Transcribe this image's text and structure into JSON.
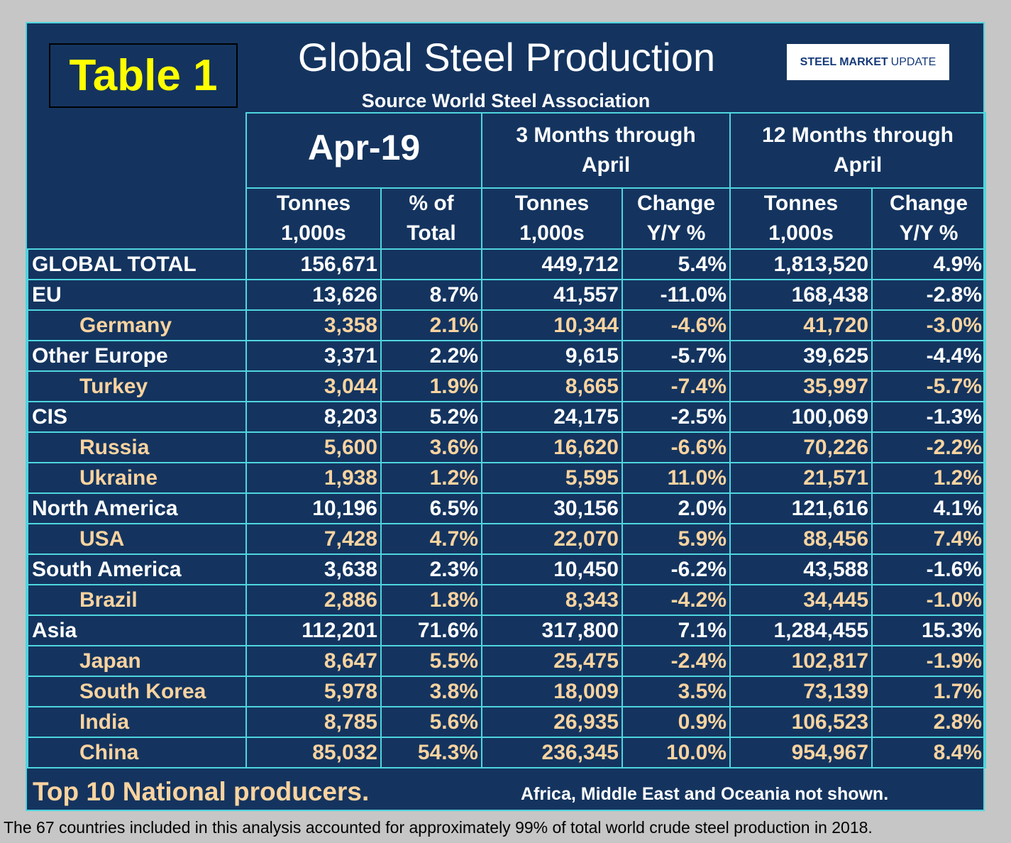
{
  "badge": "Table 1",
  "title": "Global Steel Production",
  "subtitle": "Source World Steel Association",
  "logo": {
    "part1": "STEEL",
    "part2": "MARKET",
    "part3": "UPDATE"
  },
  "headers": {
    "period1": "Apr-19",
    "period2_line1": "3 Months through",
    "period2_line2": "April",
    "period3_line1": "12 Months through",
    "period3_line2": "April",
    "col_tonnes_line1": "Tonnes",
    "col_tonnes_line2": "1,000s",
    "col_pct_line1": "% of",
    "col_pct_line2": "Total",
    "col_change_line1": "Change",
    "col_change_line2": "Y/Y %"
  },
  "rows": [
    {
      "name": "GLOBAL TOTAL",
      "sub": false,
      "apr_tonnes": "156,671",
      "apr_pct": "",
      "m3_tonnes": "449,712",
      "m3_change": "5.4%",
      "m12_tonnes": "1,813,520",
      "m12_change": "4.9%"
    },
    {
      "name": "EU",
      "sub": false,
      "apr_tonnes": "13,626",
      "apr_pct": "8.7%",
      "m3_tonnes": "41,557",
      "m3_change": "-11.0%",
      "m12_tonnes": "168,438",
      "m12_change": "-2.8%"
    },
    {
      "name": "Germany",
      "sub": true,
      "apr_tonnes": "3,358",
      "apr_pct": "2.1%",
      "m3_tonnes": "10,344",
      "m3_change": "-4.6%",
      "m12_tonnes": "41,720",
      "m12_change": "-3.0%"
    },
    {
      "name": "Other Europe",
      "sub": false,
      "apr_tonnes": "3,371",
      "apr_pct": "2.2%",
      "m3_tonnes": "9,615",
      "m3_change": "-5.7%",
      "m12_tonnes": "39,625",
      "m12_change": "-4.4%"
    },
    {
      "name": "Turkey",
      "sub": true,
      "apr_tonnes": "3,044",
      "apr_pct": "1.9%",
      "m3_tonnes": "8,665",
      "m3_change": "-7.4%",
      "m12_tonnes": "35,997",
      "m12_change": "-5.7%"
    },
    {
      "name": "CIS",
      "sub": false,
      "apr_tonnes": "8,203",
      "apr_pct": "5.2%",
      "m3_tonnes": "24,175",
      "m3_change": "-2.5%",
      "m12_tonnes": "100,069",
      "m12_change": "-1.3%"
    },
    {
      "name": "Russia",
      "sub": true,
      "apr_tonnes": "5,600",
      "apr_pct": "3.6%",
      "m3_tonnes": "16,620",
      "m3_change": "-6.6%",
      "m12_tonnes": "70,226",
      "m12_change": "-2.2%"
    },
    {
      "name": "Ukraine",
      "sub": true,
      "apr_tonnes": "1,938",
      "apr_pct": "1.2%",
      "m3_tonnes": "5,595",
      "m3_change": "11.0%",
      "m12_tonnes": "21,571",
      "m12_change": "1.2%"
    },
    {
      "name": "North America",
      "sub": false,
      "apr_tonnes": "10,196",
      "apr_pct": "6.5%",
      "m3_tonnes": "30,156",
      "m3_change": "2.0%",
      "m12_tonnes": "121,616",
      "m12_change": "4.1%"
    },
    {
      "name": "USA",
      "sub": true,
      "apr_tonnes": "7,428",
      "apr_pct": "4.7%",
      "m3_tonnes": "22,070",
      "m3_change": "5.9%",
      "m12_tonnes": "88,456",
      "m12_change": "7.4%"
    },
    {
      "name": "South America",
      "sub": false,
      "apr_tonnes": "3,638",
      "apr_pct": "2.3%",
      "m3_tonnes": "10,450",
      "m3_change": "-6.2%",
      "m12_tonnes": "43,588",
      "m12_change": "-1.6%"
    },
    {
      "name": "Brazil",
      "sub": true,
      "apr_tonnes": "2,886",
      "apr_pct": "1.8%",
      "m3_tonnes": "8,343",
      "m3_change": "-4.2%",
      "m12_tonnes": "34,445",
      "m12_change": "-1.0%"
    },
    {
      "name": "Asia",
      "sub": false,
      "apr_tonnes": "112,201",
      "apr_pct": "71.6%",
      "m3_tonnes": "317,800",
      "m3_change": "7.1%",
      "m12_tonnes": "1,284,455",
      "m12_change": "15.3%"
    },
    {
      "name": "Japan",
      "sub": true,
      "apr_tonnes": "8,647",
      "apr_pct": "5.5%",
      "m3_tonnes": "25,475",
      "m3_change": "-2.4%",
      "m12_tonnes": "102,817",
      "m12_change": "-1.9%"
    },
    {
      "name": "South Korea",
      "sub": true,
      "apr_tonnes": "5,978",
      "apr_pct": "3.8%",
      "m3_tonnes": "18,009",
      "m3_change": "3.5%",
      "m12_tonnes": "73,139",
      "m12_change": "1.7%"
    },
    {
      "name": "India",
      "sub": true,
      "apr_tonnes": "8,785",
      "apr_pct": "5.6%",
      "m3_tonnes": "26,935",
      "m3_change": "0.9%",
      "m12_tonnes": "106,523",
      "m12_change": "2.8%"
    },
    {
      "name": "China",
      "sub": true,
      "apr_tonnes": "85,032",
      "apr_pct": "54.3%",
      "m3_tonnes": "236,345",
      "m3_change": "10.0%",
      "m12_tonnes": "954,967",
      "m12_change": "8.4%"
    }
  ],
  "footer": {
    "left": "Top 10 National producers.",
    "right": "Africa, Middle East and Oceania not shown."
  },
  "caption": "The 67 countries included in this analysis accounted for approximately 99% of total world crude steel production in 2018.",
  "colors": {
    "panel_bg": "#14345f",
    "grid_line": "#4fd6dd",
    "badge_text": "#ffff00",
    "sub_row_text": "#fad39f",
    "page_bg": "#c6c6c6"
  }
}
